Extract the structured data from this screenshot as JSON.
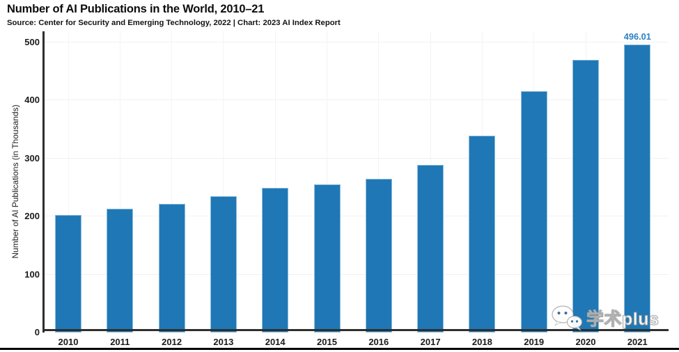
{
  "chart_data": {
    "type": "bar",
    "title": "Number of AI Publications in the World, 2010–21",
    "subtitle": "Source: Center for Security and Emerging Technology, 2022 | Chart: 2023 AI Index Report",
    "ylabel": "Number of AI Publications (in Thousands)",
    "xlabel": "",
    "categories": [
      "2010",
      "2011",
      "2012",
      "2013",
      "2014",
      "2015",
      "2016",
      "2017",
      "2018",
      "2019",
      "2020",
      "2021"
    ],
    "values": [
      203,
      213,
      222,
      235,
      249,
      256,
      265,
      289,
      339,
      416,
      470,
      496.01
    ],
    "value_labels": {
      "2021": "496.01"
    },
    "ylim": [
      0,
      500
    ],
    "yticks": [
      0,
      100,
      200,
      300,
      400,
      500
    ],
    "grid": {
      "horizontal": true,
      "vertical": true
    },
    "legend_position": "none",
    "colors": {
      "bar_fill": "#1f78b5",
      "bar_edge": "#8fbede",
      "annotation_text": "#2d80c3",
      "axis_line": "#2e2e2e",
      "grid_line": "#f2f2f2",
      "tick_text": "#1a1a1a"
    }
  },
  "watermark": {
    "icon": "wechat-icon",
    "text": "学术plus"
  },
  "footer": {
    "divider": "black-horizontal-rule"
  }
}
